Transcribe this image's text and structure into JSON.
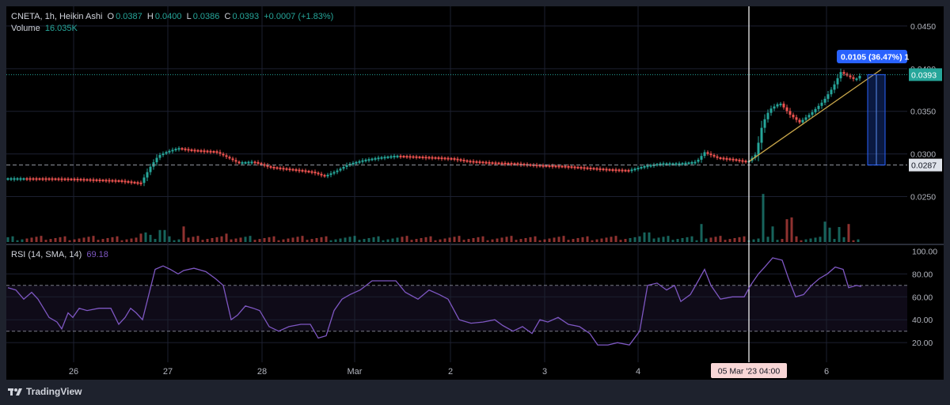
{
  "legend": {
    "symbol": "CNETA",
    "interval": "1h",
    "chart_style": "Heikin Ashi",
    "open_label": "O",
    "open": "0.0387",
    "high_label": "H",
    "high": "0.0400",
    "low_label": "L",
    "low": "0.0386",
    "close_label": "C",
    "close": "0.0393",
    "change": "+0.0007 (+1.83%)",
    "volume_label": "Volume",
    "volume": "16.035K",
    "rsi_label": "RSI (14, SMA, 14)",
    "rsi_value": "69.18"
  },
  "price_axis": {
    "ticks": [
      "0.0450",
      "0.0400",
      "0.0350",
      "0.0300",
      "0.0250"
    ],
    "current_price": "0.0393",
    "support_price": "0.0287",
    "measure_label": "0.0105 (36.47%) 1"
  },
  "rsi_axis": {
    "ticks": [
      "100.00",
      "80.00",
      "60.00",
      "40.00",
      "20.00"
    ]
  },
  "time_axis": {
    "ticks": [
      "26",
      "27",
      "28",
      "Mar",
      "2",
      "3",
      "4",
      "6"
    ],
    "crosshair_label": "05 Mar '23   04:00"
  },
  "brand": {
    "name": "TradingView"
  },
  "colors": {
    "up": "#26a69a",
    "down": "#ef5350",
    "rsi_line": "#7e57c2",
    "background": "#000000",
    "measure_box": "#2962ff",
    "trendline": "#c9a74a"
  },
  "chart_data": {
    "type": "line",
    "price_range": [
      0.0205,
      0.0462
    ],
    "rsi_range": [
      7,
      103
    ],
    "price_path": [
      [
        0,
        0.02715
      ],
      [
        30,
        0.02715
      ],
      [
        60,
        0.02714
      ],
      [
        90,
        0.0271
      ],
      [
        120,
        0.027
      ],
      [
        150,
        0.0269
      ],
      [
        178,
        0.0266
      ],
      [
        190,
        0.0285
      ],
      [
        200,
        0.0298
      ],
      [
        212,
        0.0303
      ],
      [
        225,
        0.0307
      ],
      [
        240,
        0.0305
      ],
      [
        255,
        0.0304
      ],
      [
        272,
        0.0303
      ],
      [
        285,
        0.0297
      ],
      [
        300,
        0.029
      ],
      [
        320,
        0.0291
      ],
      [
        340,
        0.0285
      ],
      [
        360,
        0.0283
      ],
      [
        380,
        0.0281
      ],
      [
        395,
        0.0279
      ],
      [
        410,
        0.0274
      ],
      [
        425,
        0.028
      ],
      [
        440,
        0.0288
      ],
      [
        460,
        0.0293
      ],
      [
        480,
        0.0296
      ],
      [
        500,
        0.0298
      ],
      [
        525,
        0.0297
      ],
      [
        550,
        0.0296
      ],
      [
        570,
        0.0295
      ],
      [
        590,
        0.0292
      ],
      [
        620,
        0.029
      ],
      [
        650,
        0.0289
      ],
      [
        680,
        0.0287
      ],
      [
        710,
        0.0286
      ],
      [
        740,
        0.0284
      ],
      [
        770,
        0.0282
      ],
      [
        795,
        0.0281
      ],
      [
        815,
        0.0286
      ],
      [
        835,
        0.0289
      ],
      [
        860,
        0.0289
      ],
      [
        880,
        0.0291
      ],
      [
        890,
        0.0302
      ],
      [
        905,
        0.0296
      ],
      [
        925,
        0.0294
      ],
      [
        945,
        0.0291
      ],
      [
        955,
        0.03
      ],
      [
        963,
        0.0335
      ],
      [
        972,
        0.0352
      ],
      [
        985,
        0.036
      ],
      [
        998,
        0.0346
      ],
      [
        1010,
        0.0337
      ],
      [
        1025,
        0.0348
      ],
      [
        1040,
        0.0362
      ],
      [
        1052,
        0.0378
      ],
      [
        1062,
        0.0396
      ],
      [
        1072,
        0.0391
      ],
      [
        1080,
        0.0387
      ],
      [
        1088,
        0.0393
      ]
    ],
    "volume_spikes": [
      [
        965,
        0.8
      ],
      [
        975,
        0.26
      ],
      [
        992,
        0.38
      ],
      [
        1000,
        0.41
      ],
      [
        1044,
        0.34
      ],
      [
        1050,
        0.24
      ],
      [
        1060,
        0.25
      ],
      [
        1070,
        0.3
      ],
      [
        1088,
        0.22
      ],
      [
        817,
        0.16
      ],
      [
        887,
        0.3
      ],
      [
        230,
        0.26
      ],
      [
        205,
        0.2
      ],
      [
        178,
        0.14
      ],
      [
        287,
        0.14
      ],
      [
        183,
        0.16
      ],
      [
        188,
        0.12
      ]
    ],
    "rsi_path": [
      [
        10,
        68
      ],
      [
        20,
        66
      ],
      [
        30,
        58
      ],
      [
        40,
        64
      ],
      [
        48,
        58
      ],
      [
        55,
        50
      ],
      [
        62,
        42
      ],
      [
        72,
        38
      ],
      [
        78,
        32
      ],
      [
        86,
        46
      ],
      [
        92,
        42
      ],
      [
        100,
        50
      ],
      [
        110,
        48
      ],
      [
        125,
        50
      ],
      [
        140,
        50
      ],
      [
        150,
        36
      ],
      [
        158,
        42
      ],
      [
        165,
        50
      ],
      [
        172,
        46
      ],
      [
        180,
        40
      ],
      [
        188,
        62
      ],
      [
        196,
        84
      ],
      [
        206,
        87
      ],
      [
        215,
        84
      ],
      [
        225,
        80
      ],
      [
        232,
        83
      ],
      [
        245,
        85
      ],
      [
        260,
        82
      ],
      [
        272,
        76
      ],
      [
        282,
        70
      ],
      [
        292,
        40
      ],
      [
        300,
        44
      ],
      [
        310,
        52
      ],
      [
        320,
        50
      ],
      [
        328,
        48
      ],
      [
        340,
        34
      ],
      [
        352,
        30
      ],
      [
        365,
        34
      ],
      [
        380,
        36
      ],
      [
        392,
        36
      ],
      [
        402,
        24
      ],
      [
        412,
        26
      ],
      [
        422,
        48
      ],
      [
        432,
        58
      ],
      [
        442,
        62
      ],
      [
        455,
        66
      ],
      [
        470,
        74
      ],
      [
        485,
        74
      ],
      [
        500,
        74
      ],
      [
        512,
        64
      ],
      [
        528,
        58
      ],
      [
        542,
        66
      ],
      [
        555,
        62
      ],
      [
        566,
        58
      ],
      [
        580,
        40
      ],
      [
        595,
        37
      ],
      [
        610,
        38
      ],
      [
        625,
        40
      ],
      [
        635,
        35
      ],
      [
        648,
        30
      ],
      [
        660,
        34
      ],
      [
        672,
        28
      ],
      [
        682,
        40
      ],
      [
        692,
        38
      ],
      [
        705,
        42
      ],
      [
        718,
        36
      ],
      [
        732,
        34
      ],
      [
        745,
        28
      ],
      [
        755,
        18
      ],
      [
        768,
        18
      ],
      [
        780,
        20
      ],
      [
        795,
        18
      ],
      [
        808,
        30
      ],
      [
        818,
        70
      ],
      [
        830,
        72
      ],
      [
        842,
        66
      ],
      [
        852,
        70
      ],
      [
        860,
        56
      ],
      [
        872,
        62
      ],
      [
        882,
        74
      ],
      [
        890,
        84
      ],
      [
        898,
        70
      ],
      [
        910,
        58
      ],
      [
        925,
        60
      ],
      [
        940,
        60
      ],
      [
        948,
        70
      ],
      [
        958,
        80
      ],
      [
        966,
        86
      ],
      [
        976,
        94
      ],
      [
        988,
        92
      ],
      [
        996,
        76
      ],
      [
        1005,
        60
      ],
      [
        1015,
        62
      ],
      [
        1025,
        70
      ],
      [
        1035,
        76
      ],
      [
        1045,
        80
      ],
      [
        1055,
        86
      ],
      [
        1065,
        84
      ],
      [
        1072,
        68
      ],
      [
        1082,
        70
      ],
      [
        1088,
        69
      ]
    ],
    "rsi_guides": [
      70,
      30
    ]
  }
}
